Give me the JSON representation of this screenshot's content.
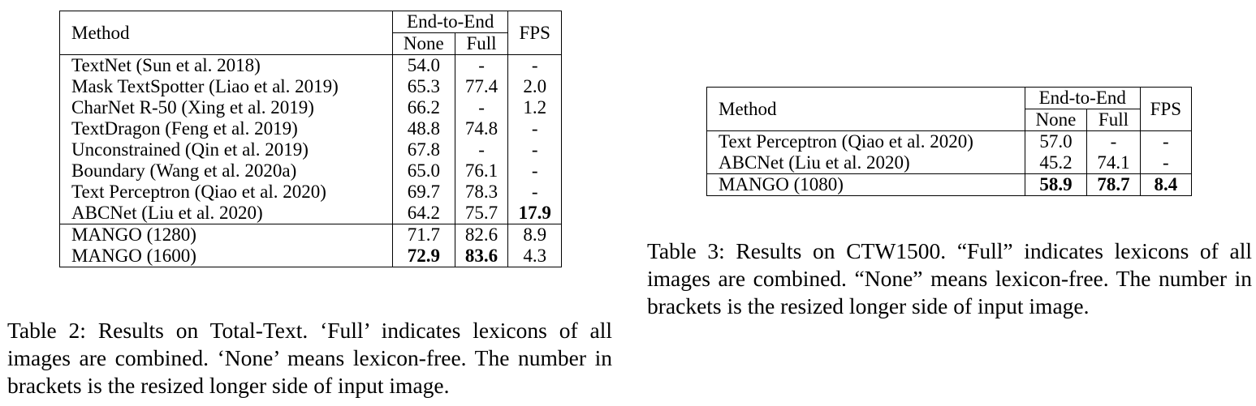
{
  "table2": {
    "header": {
      "method": "Method",
      "group": "End-to-End",
      "none": "None",
      "full": "Full",
      "fps": "FPS"
    },
    "rows": [
      {
        "method": "TextNet (Sun et al. 2018)",
        "none": "54.0",
        "full": "-",
        "fps": "-"
      },
      {
        "method": "Mask TextSpotter (Liao et al. 2019)",
        "none": "65.3",
        "full": "77.4",
        "fps": "2.0"
      },
      {
        "method": "CharNet R-50 (Xing et al. 2019)",
        "none": "66.2",
        "full": "-",
        "fps": "1.2"
      },
      {
        "method": "TextDragon (Feng et al. 2019)",
        "none": "48.8",
        "full": "74.8",
        "fps": "-"
      },
      {
        "method": "Unconstrained (Qin et al. 2019)",
        "none": "67.8",
        "full": "-",
        "fps": "-"
      },
      {
        "method": "Boundary (Wang et al. 2020a)",
        "none": "65.0",
        "full": "76.1",
        "fps": "-"
      },
      {
        "method": "Text Perceptron (Qiao et al. 2020)",
        "none": "69.7",
        "full": "78.3",
        "fps": "-"
      },
      {
        "method": "ABCNet (Liu et al. 2020)",
        "none": "64.2",
        "full": "75.7",
        "fps": "17.9"
      },
      {
        "method": "MANGO (1280)",
        "none": "71.7",
        "full": "82.6",
        "fps": "8.9"
      },
      {
        "method": "MANGO (1600)",
        "none": "72.9",
        "full": "83.6",
        "fps": "4.3"
      }
    ],
    "caption": "Table 2: Results on Total-Text. ‘Full’ indicates lexicons of all images are combined. ‘None’ means lexicon-free. The number in brackets is the resized longer side of input image."
  },
  "table3": {
    "header": {
      "method": "Method",
      "group": "End-to-End",
      "none": "None",
      "full": "Full",
      "fps": "FPS"
    },
    "rows": [
      {
        "method": "Text Perceptron (Qiao et al. 2020)",
        "none": "57.0",
        "full": "-",
        "fps": "-"
      },
      {
        "method": "ABCNet (Liu et al. 2020)",
        "none": "45.2",
        "full": "74.1",
        "fps": "-"
      },
      {
        "method": "MANGO (1080)",
        "none": "58.9",
        "full": "78.7",
        "fps": "8.4"
      }
    ],
    "caption": "Table 3: Results on CTW1500. “Full” indicates lexicons of all images are combined. “None” means lexicon-free. The number in brackets is the resized longer side of input image."
  }
}
